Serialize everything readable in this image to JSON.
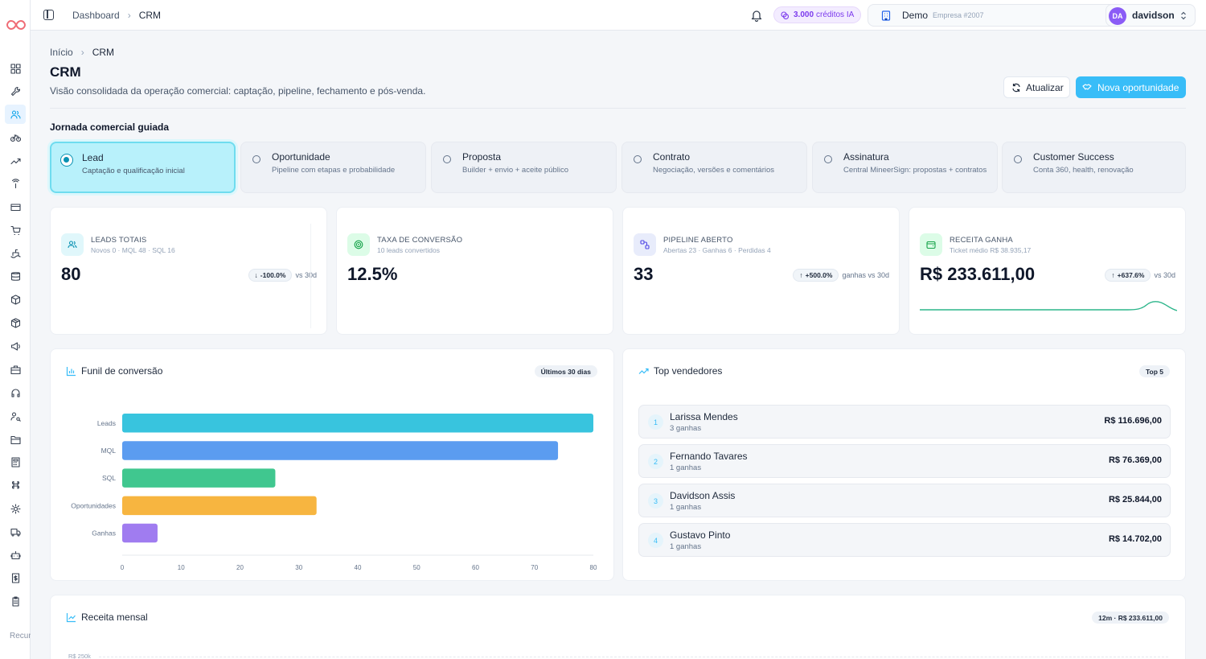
{
  "topbar": {
    "breadcrumb": [
      "Dashboard",
      "CRM"
    ],
    "credits_value": "3.000",
    "credits_label": "créditos IA",
    "company_name": "Demo",
    "company_sub": "Empresa #2007",
    "user_initials": "DA",
    "user_name": "davidson"
  },
  "sidebar": {
    "icons": [
      "grid-icon",
      "wrench-icon",
      "users-icon",
      "bike-icon",
      "trending-icon",
      "broadcast-icon",
      "card-icon",
      "cart-icon",
      "ship-icon",
      "database-icon",
      "box-icon",
      "package-icon",
      "megaphone-icon",
      "briefcase-icon",
      "headset-icon",
      "user-search-icon",
      "folder-icon",
      "calculator-icon",
      "command-icon",
      "settings-icon",
      "truck-icon",
      "bot-icon",
      "dollar-file-icon",
      "clipboard-icon"
    ],
    "footer_text": "Recursos avançados"
  },
  "page": {
    "breadcrumb": [
      "Início",
      "CRM"
    ],
    "title": "CRM",
    "subtitle": "Visão consolidada da operação comercial: captação, pipeline, fechamento e pós-venda.",
    "refresh_label": "Atualizar",
    "new_label": "Nova oportunidade"
  },
  "journey": {
    "title": "Jornada comercial guiada",
    "steps": [
      {
        "label": "Lead",
        "desc": "Captação e qualificação inicial"
      },
      {
        "label": "Oportunidade",
        "desc": "Pipeline com etapas e probabilidade"
      },
      {
        "label": "Proposta",
        "desc": "Builder + envio + aceite público"
      },
      {
        "label": "Contrato",
        "desc": "Negociação, versões e comentários"
      },
      {
        "label": "Assinatura",
        "desc": "Central MineerSign: propostas + contratos"
      },
      {
        "label": "Customer Success",
        "desc": "Conta 360, health, renovação"
      }
    ],
    "active_index": 0
  },
  "kpis": [
    {
      "label": "LEADS TOTAIS",
      "sub": "Novos 0 · MQL 48 · SQL 16",
      "value": "80",
      "delta": "-100.0%",
      "delta_dir": "down",
      "compare": "vs 30d"
    },
    {
      "label": "TAXA DE CONVERSÃO",
      "sub": "10 leads convertidos",
      "value": "12.5%",
      "delta": "",
      "compare": ""
    },
    {
      "label": "PIPELINE ABERTO",
      "sub": "Abertas 23 · Ganhas 6 · Perdidas 4",
      "value": "33",
      "delta": "+500.0%",
      "delta_dir": "up",
      "compare": "ganhas vs 30d"
    },
    {
      "label": "RECEITA GANHA",
      "sub": "Ticket médio R$ 38.935,17",
      "value": "R$ 233.611,00",
      "delta": "+637.6%",
      "delta_dir": "up",
      "compare": "vs 30d"
    }
  ],
  "funnel": {
    "title": "Funil de conversão",
    "tag": "Últimos 30 dias"
  },
  "chart_data": {
    "type": "bar",
    "orientation": "horizontal",
    "categories": [
      "Leads",
      "MQL",
      "SQL",
      "Oportunidades",
      "Ganhas"
    ],
    "values": [
      80,
      74,
      26,
      33,
      6
    ],
    "colors": [
      "#38c4de",
      "#5b9cf0",
      "#40c78f",
      "#f7b540",
      "#a07cf0"
    ],
    "xlim": [
      0,
      80
    ],
    "xticks": [
      0,
      10,
      20,
      30,
      40,
      50,
      60,
      70,
      80
    ],
    "grid": false
  },
  "sellers": {
    "title": "Top vendedores",
    "tag": "Top 5",
    "items": [
      {
        "rank": "1",
        "name": "Larissa Mendes",
        "wins": "3 ganhas",
        "amount": "R$ 116.696,00"
      },
      {
        "rank": "2",
        "name": "Fernando Tavares",
        "wins": "1 ganhas",
        "amount": "R$ 76.369,00"
      },
      {
        "rank": "3",
        "name": "Davidson Assis",
        "wins": "1 ganhas",
        "amount": "R$ 25.844,00"
      },
      {
        "rank": "4",
        "name": "Gustavo Pinto",
        "wins": "1 ganhas",
        "amount": "R$ 14.702,00"
      }
    ]
  },
  "revenue": {
    "title": "Receita mensal",
    "tag": "12m · R$ 233.611,00",
    "first_tick": "R$ 250k"
  },
  "colors": {
    "accent": "#38bdf8",
    "active_step": "#b8f1fb",
    "sparkline": "#2bb58a"
  }
}
